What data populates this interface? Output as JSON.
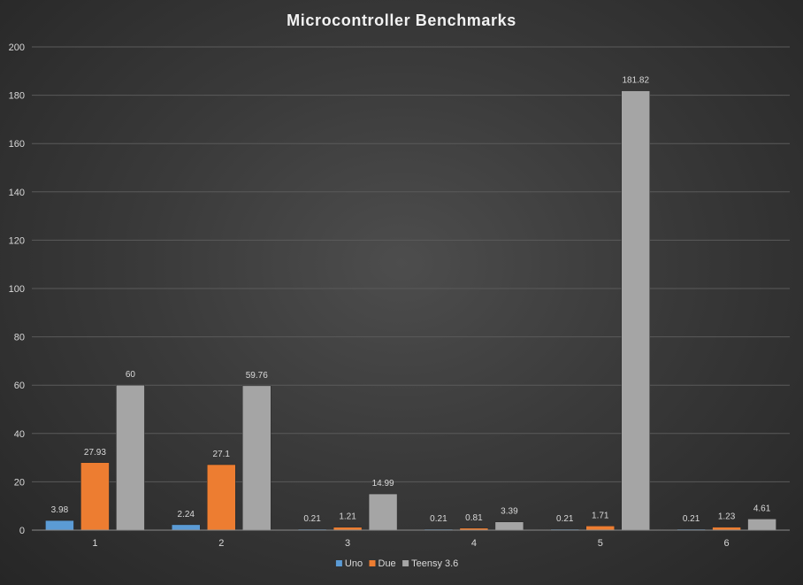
{
  "chart_data": {
    "type": "bar",
    "title": "Microcontroller  Benchmarks",
    "categories": [
      "1",
      "2",
      "3",
      "4",
      "5",
      "6"
    ],
    "series": [
      {
        "name": "Uno",
        "color": "#5b9bd5",
        "values": [
          3.98,
          2.24,
          0.21,
          0.21,
          0.21,
          0.21
        ]
      },
      {
        "name": "Due",
        "color": "#ed7d31",
        "values": [
          27.93,
          27.1,
          1.21,
          0.81,
          1.71,
          1.23
        ]
      },
      {
        "name": "Teensy 3.6",
        "color": "#a5a5a5",
        "values": [
          60,
          59.76,
          14.99,
          3.39,
          181.82,
          4.61
        ]
      }
    ],
    "ylim": [
      0,
      200
    ],
    "yticks": [
      "0",
      "20",
      "40",
      "60",
      "80",
      "100",
      "120",
      "140",
      "160",
      "180",
      "200"
    ],
    "grid": true,
    "legend_position": "bottom"
  }
}
